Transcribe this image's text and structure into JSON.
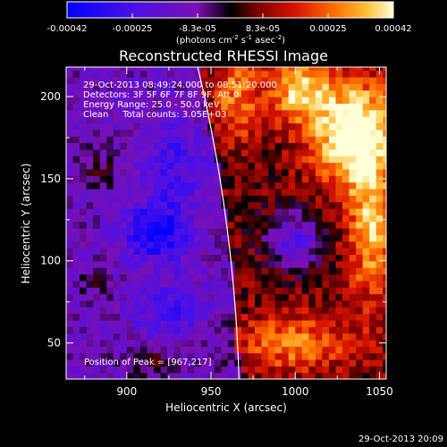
{
  "chart_data": {
    "type": "heatmap",
    "title": "Reconstructed RHESSI Image",
    "xlabel": "Heliocentric X (arcsec)",
    "ylabel": "Heliocentric Y (arcsec)",
    "xlim": [
      864,
      1054
    ],
    "ylim": [
      28,
      218
    ],
    "xticks": [
      900,
      950,
      1000,
      1050
    ],
    "yticks": [
      50,
      100,
      150,
      200
    ],
    "colorbar": {
      "ticks": [
        "-0.00042",
        "-0.00025",
        "-8.3e-05",
        "8.3e-05",
        "0.00025",
        "0.00042"
      ],
      "range": [
        -0.00042,
        0.00042
      ],
      "label_main": "(photons cm",
      "label_exp1": "-2",
      "label_mid1": " s",
      "label_exp2": "-1",
      "label_mid2": " asec",
      "label_exp3": "-2",
      "label_end": ")"
    },
    "annotations": [
      "29-Oct-2013 08:49:24.000 to 08:51:20.000",
      "Detectors: 3F 5F 6F 7F 8F 9F, Att 0",
      "Energy Range: 25.0 - 50.0 keV",
      "Clean     Total counts: 3.05E+03"
    ],
    "peak_label": "Position of Peak = [967,217]",
    "peak": [
      967,
      217
    ],
    "limb": {
      "center": [
        0,
        0
      ],
      "radius_arcsec": 967
    },
    "flux_sources": [
      {
        "x": 1035,
        "y": 178,
        "sigma_x": 18,
        "sigma_y": 22,
        "amp": 0.00045
      },
      {
        "x": 1002,
        "y": 205,
        "sigma_x": 12,
        "sigma_y": 14,
        "amp": 0.0003
      },
      {
        "x": 965,
        "y": 200,
        "sigma_x": 10,
        "sigma_y": 20,
        "amp": 0.00022
      },
      {
        "x": 1045,
        "y": 120,
        "sigma_x": 10,
        "sigma_y": 30,
        "amp": 0.00028
      },
      {
        "x": 1000,
        "y": 50,
        "sigma_x": 25,
        "sigma_y": 12,
        "amp": 0.00022
      },
      {
        "x": 885,
        "y": 155,
        "sigma_x": 9,
        "sigma_y": 10,
        "amp": 0.0001
      },
      {
        "x": 880,
        "y": 88,
        "sigma_x": 8,
        "sigma_y": 8,
        "amp": 9e-05
      },
      {
        "x": 915,
        "y": 38,
        "sigma_x": 12,
        "sigma_y": 7,
        "amp": 0.00012
      },
      {
        "x": 918,
        "y": 118,
        "sigma_x": 12,
        "sigma_y": 12,
        "amp": -0.0003
      },
      {
        "x": 1000,
        "y": 112,
        "sigma_x": 12,
        "sigma_y": 12,
        "amp": -0.00028
      },
      {
        "x": 930,
        "y": 160,
        "sigma_x": 14,
        "sigma_y": 18,
        "amp": -0.00014
      },
      {
        "x": 925,
        "y": 70,
        "sigma_x": 14,
        "sigma_y": 12,
        "amp": -0.00014
      }
    ]
  },
  "timestamp": "29-Oct-2013 20:09"
}
